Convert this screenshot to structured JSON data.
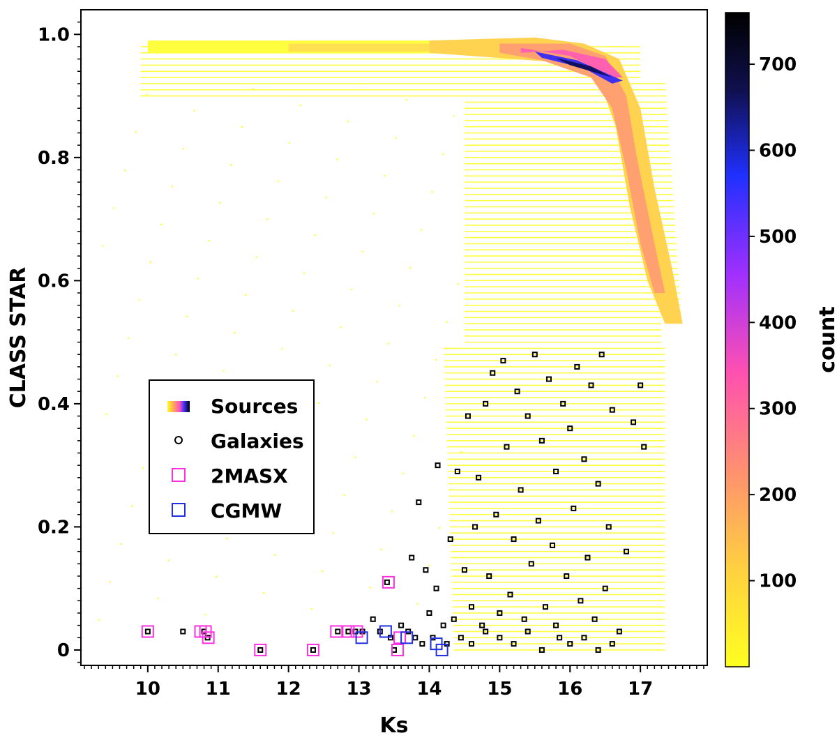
{
  "chart_data": {
    "type": "scatter",
    "title": "",
    "xlabel": "Ks",
    "ylabel": "CLASS STAR",
    "xlim": [
      9.05,
      17.95
    ],
    "ylim": [
      -0.025,
      1.04
    ],
    "x_ticks": [
      "10",
      "11",
      "12",
      "13",
      "14",
      "15",
      "16",
      "17"
    ],
    "y_ticks": [
      "0",
      "0.2",
      "0.4",
      "0.6",
      "0.8",
      "1.0"
    ],
    "colorbar": {
      "label": "count",
      "range": [
        0,
        760
      ],
      "ticks": [
        "100",
        "200",
        "300",
        "400",
        "500",
        "600",
        "700"
      ],
      "colors": [
        "#ffff20",
        "#ffb060",
        "#ff60a0",
        "#c040e0",
        "#3020ff",
        "#101060",
        "#000000"
      ]
    },
    "legend": {
      "position": "center-left",
      "entries": [
        "Sources",
        "Galaxies",
        "2MASX",
        "CGMW"
      ]
    },
    "series": [
      {
        "name": "Sources",
        "kind": "2d-histogram",
        "description_points": [
          {
            "x": 10.0,
            "y": 0.98
          },
          {
            "x": 14.0,
            "y": 0.98
          },
          {
            "x": 15.5,
            "y": 0.96
          },
          {
            "x": 16.5,
            "y": 0.93
          },
          {
            "x": 17.0,
            "y": 0.8
          },
          {
            "x": 17.3,
            "y": 0.65
          },
          {
            "x": 17.5,
            "y": 0.55
          }
        ]
      },
      {
        "name": "Galaxies",
        "color": "#000000",
        "points": [
          [
            10.0,
            0.03
          ],
          [
            10.5,
            0.03
          ],
          [
            10.8,
            0.03
          ],
          [
            10.85,
            0.02
          ],
          [
            11.6,
            0.0
          ],
          [
            12.35,
            0.0
          ],
          [
            12.7,
            0.03
          ],
          [
            12.85,
            0.03
          ],
          [
            12.95,
            0.03
          ],
          [
            13.05,
            0.03
          ],
          [
            13.2,
            0.05
          ],
          [
            13.3,
            0.03
          ],
          [
            13.4,
            0.11
          ],
          [
            13.45,
            0.02
          ],
          [
            13.5,
            0.0
          ],
          [
            13.6,
            0.04
          ],
          [
            13.7,
            0.03
          ],
          [
            13.75,
            0.15
          ],
          [
            13.8,
            0.02
          ],
          [
            13.85,
            0.24
          ],
          [
            13.9,
            0.01
          ],
          [
            13.95,
            0.13
          ],
          [
            14.0,
            0.06
          ],
          [
            14.05,
            0.02
          ],
          [
            14.1,
            0.1
          ],
          [
            14.12,
            0.3
          ],
          [
            14.2,
            0.04
          ],
          [
            14.25,
            0.01
          ],
          [
            14.3,
            0.18
          ],
          [
            14.35,
            0.05
          ],
          [
            14.4,
            0.29
          ],
          [
            14.45,
            0.02
          ],
          [
            14.5,
            0.13
          ],
          [
            14.55,
            0.38
          ],
          [
            14.6,
            0.07
          ],
          [
            14.65,
            0.2
          ],
          [
            14.7,
            0.28
          ],
          [
            14.75,
            0.04
          ],
          [
            14.8,
            0.4
          ],
          [
            14.85,
            0.12
          ],
          [
            14.9,
            0.45
          ],
          [
            14.95,
            0.22
          ],
          [
            15.0,
            0.02
          ],
          [
            15.05,
            0.47
          ],
          [
            15.1,
            0.33
          ],
          [
            15.15,
            0.09
          ],
          [
            15.2,
            0.18
          ],
          [
            15.25,
            0.42
          ],
          [
            15.3,
            0.26
          ],
          [
            15.35,
            0.05
          ],
          [
            15.4,
            0.38
          ],
          [
            15.45,
            0.14
          ],
          [
            15.5,
            0.48
          ],
          [
            15.55,
            0.21
          ],
          [
            15.6,
            0.34
          ],
          [
            15.65,
            0.07
          ],
          [
            15.7,
            0.44
          ],
          [
            15.75,
            0.17
          ],
          [
            15.8,
            0.29
          ],
          [
            15.85,
            0.02
          ],
          [
            15.9,
            0.4
          ],
          [
            15.95,
            0.12
          ],
          [
            16.0,
            0.36
          ],
          [
            16.05,
            0.23
          ],
          [
            16.1,
            0.46
          ],
          [
            16.15,
            0.08
          ],
          [
            16.2,
            0.31
          ],
          [
            16.25,
            0.15
          ],
          [
            16.3,
            0.43
          ],
          [
            16.35,
            0.05
          ],
          [
            16.4,
            0.27
          ],
          [
            16.45,
            0.48
          ],
          [
            16.5,
            0.1
          ],
          [
            16.55,
            0.2
          ],
          [
            16.6,
            0.39
          ],
          [
            16.7,
            0.03
          ],
          [
            16.8,
            0.16
          ],
          [
            16.9,
            0.37
          ],
          [
            17.0,
            0.43
          ],
          [
            17.05,
            0.33
          ],
          [
            15.2,
            0.01
          ],
          [
            15.4,
            0.03
          ],
          [
            15.6,
            0.0
          ],
          [
            15.8,
            0.04
          ],
          [
            16.0,
            0.01
          ],
          [
            16.2,
            0.02
          ],
          [
            16.4,
            0.0
          ],
          [
            14.6,
            0.01
          ],
          [
            14.8,
            0.03
          ],
          [
            15.0,
            0.06
          ],
          [
            16.6,
            0.01
          ]
        ]
      },
      {
        "name": "2MASX",
        "color": "#ff30e0",
        "points": [
          [
            10.0,
            0.03
          ],
          [
            10.75,
            0.03
          ],
          [
            10.82,
            0.03
          ],
          [
            10.86,
            0.02
          ],
          [
            11.6,
            0.0
          ],
          [
            12.35,
            0.0
          ],
          [
            12.68,
            0.03
          ],
          [
            12.85,
            0.03
          ],
          [
            12.97,
            0.03
          ],
          [
            13.42,
            0.11
          ],
          [
            13.55,
            0.0
          ],
          [
            13.58,
            0.02
          ]
        ]
      },
      {
        "name": "CGMW",
        "color": "#2030e0",
        "points": [
          [
            13.04,
            0.02
          ],
          [
            13.38,
            0.03
          ],
          [
            13.68,
            0.02
          ],
          [
            14.1,
            0.01
          ],
          [
            14.18,
            0.0
          ]
        ]
      }
    ]
  }
}
